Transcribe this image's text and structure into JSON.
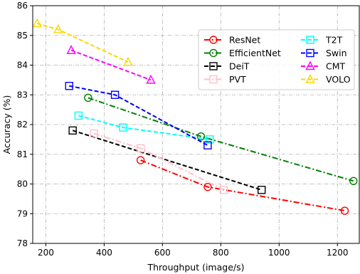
{
  "chart_data": {
    "type": "line",
    "title": "",
    "xlabel": "Throughput (image/s)",
    "ylabel": "Accuracy (%)",
    "xlim": [
      155,
      1275
    ],
    "ylim": [
      78,
      86
    ],
    "xticks": [
      200,
      400,
      600,
      800,
      1000,
      1200
    ],
    "yticks": [
      78,
      79,
      80,
      81,
      82,
      83,
      84,
      85,
      86
    ],
    "grid": true,
    "legend_position": "top-right",
    "series": [
      {
        "name": "ResNet",
        "color": "#ff0000",
        "marker": "circle",
        "dash": "dashdot",
        "x": [
          525,
          755,
          1225
        ],
        "y": [
          80.8,
          79.9,
          79.1
        ]
      },
      {
        "name": "EfficientNet",
        "color": "#008000",
        "marker": "circle",
        "dash": "dashdot",
        "x": [
          345,
          732,
          1255
        ],
        "y": [
          82.9,
          81.6,
          80.1
        ]
      },
      {
        "name": "DeiT",
        "color": "#000000",
        "marker": "square",
        "dash": "dashed",
        "x": [
          292,
          940
        ],
        "y": [
          81.8,
          79.8
        ]
      },
      {
        "name": "PVT",
        "color": "#ffc0cb",
        "marker": "square",
        "dash": "dashdot",
        "x": [
          365,
          525,
          810
        ],
        "y": [
          81.7,
          81.2,
          79.8
        ]
      },
      {
        "name": "T2T",
        "color": "#00ffff",
        "marker": "square",
        "dash": "dashed",
        "x": [
          312,
          465,
          762
        ],
        "y": [
          82.3,
          81.9,
          81.5
        ]
      },
      {
        "name": "Swin",
        "color": "#0000ff",
        "marker": "square",
        "dash": "dashed",
        "x": [
          280,
          437,
          755
        ],
        "y": [
          83.3,
          83.0,
          81.3
        ]
      },
      {
        "name": "CMT",
        "color": "#ff00ff",
        "marker": "triangle",
        "dash": "dashed",
        "x": [
          287,
          560
        ],
        "y": [
          84.5,
          83.5
        ]
      },
      {
        "name": "VOLO",
        "color": "#ffd700",
        "marker": "triangle",
        "dash": "dashed",
        "x": [
          170,
          242,
          482
        ],
        "y": [
          85.4,
          85.2,
          84.1
        ]
      }
    ]
  }
}
